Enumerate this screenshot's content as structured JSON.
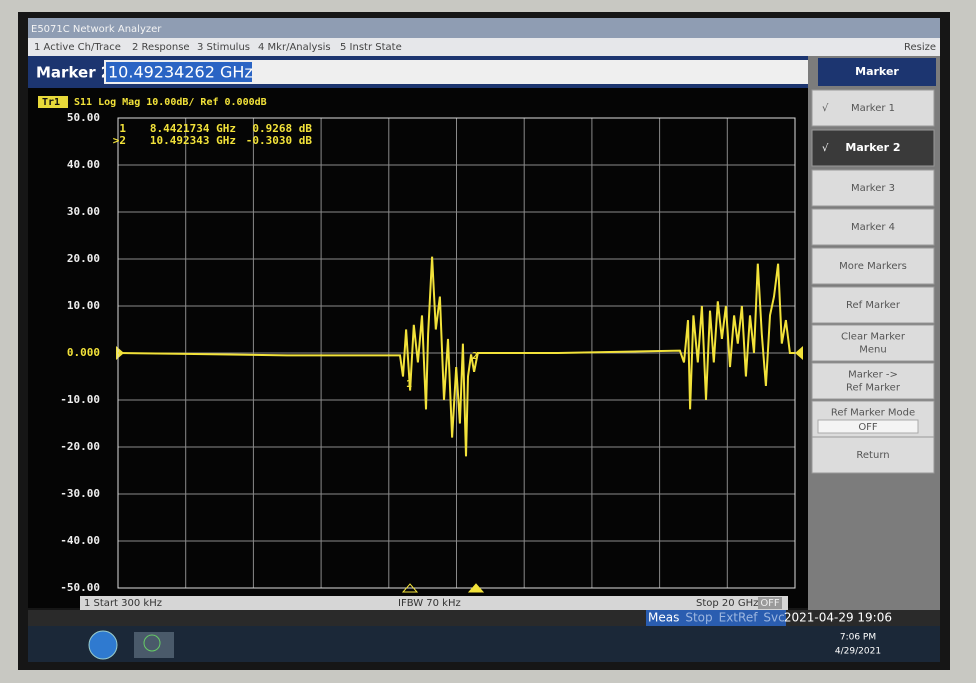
{
  "window": {
    "title": "E5071C Network Analyzer",
    "resize": "Resize"
  },
  "menu": [
    "1 Active Ch/Trace",
    "2 Response",
    "3 Stimulus",
    "4 Mkr/Analysis",
    "5 Instr State"
  ],
  "entry": {
    "label": "Marker 2",
    "value": "10.49234262 GHz"
  },
  "softkeys": {
    "title": "Marker",
    "keys": [
      {
        "lines": [
          "Marker 1"
        ],
        "mark": "√"
      },
      {
        "lines": [
          "Marker 2"
        ],
        "mark": "√",
        "selected": true
      },
      {
        "lines": [
          "Marker 3"
        ]
      },
      {
        "lines": [
          "Marker 4"
        ]
      },
      {
        "lines": [
          "More Markers"
        ]
      },
      {
        "lines": [
          "Ref Marker"
        ]
      },
      {
        "lines": [
          "Clear Marker",
          "Menu"
        ]
      },
      {
        "lines": [
          "Marker ->",
          "Ref Marker"
        ]
      },
      {
        "lines": [
          "Ref Marker Mode"
        ],
        "value": "OFF"
      },
      {
        "lines": [
          "Return"
        ]
      }
    ]
  },
  "trace": {
    "id": "Tr1",
    "header": "S11 Log Mag 10.00dB/ Ref 0.000dB",
    "color": "#f2e23a",
    "ylim": [
      -50,
      50
    ],
    "yticks": [
      {
        "value": 50,
        "label": "50.00"
      },
      {
        "value": 40,
        "label": "40.00"
      },
      {
        "value": 30,
        "label": "30.00"
      },
      {
        "value": 20,
        "label": "20.00"
      },
      {
        "value": 10,
        "label": "10.00"
      },
      {
        "value": 0,
        "label": "0.000"
      },
      {
        "value": -10,
        "label": "-10.00"
      },
      {
        "value": -20,
        "label": "-20.00"
      },
      {
        "value": -30,
        "label": "-30.00"
      },
      {
        "value": -40,
        "label": "-40.00"
      },
      {
        "value": -50,
        "label": "-50.00"
      }
    ],
    "xlim": [
      0.0003,
      20
    ],
    "x": [
      0.0003,
      2,
      5,
      8.33,
      8.42,
      8.51,
      8.63,
      8.74,
      8.86,
      8.98,
      9.1,
      9.16,
      9.28,
      9.39,
      9.51,
      9.63,
      9.75,
      9.87,
      9.99,
      10.1,
      10.19,
      10.28,
      10.34,
      10.43,
      10.52,
      10.63,
      13,
      16.6,
      16.72,
      16.84,
      16.9,
      17,
      17.13,
      17.25,
      17.37,
      17.49,
      17.6,
      17.72,
      17.84,
      17.96,
      18.08,
      18.2,
      18.31,
      18.43,
      18.55,
      18.67,
      18.79,
      18.9,
      19.02,
      19.14,
      19.26,
      19.38,
      19.5,
      19.61,
      19.73,
      19.85,
      20
    ],
    "db": [
      0,
      -0.2,
      -0.5,
      -0.5,
      -5,
      5,
      -8,
      6,
      -2,
      8,
      -12,
      4,
      20.5,
      5,
      12,
      -10,
      3,
      -18,
      -3,
      -15,
      2,
      -22,
      -5,
      -0.3,
      -4,
      0,
      0,
      0.5,
      -2,
      7,
      -12,
      8,
      -2,
      10,
      -10,
      9,
      -2,
      11,
      3,
      10,
      -3,
      8,
      2,
      10,
      -5,
      8,
      0,
      19,
      4,
      -7,
      8,
      12,
      19,
      2,
      7,
      0,
      0
    ]
  },
  "markers": [
    {
      "id": "1",
      "freq": "8.4421734 GHz",
      "value": "0.9268 dB",
      "tag": "1"
    },
    {
      "id": ">2",
      "freq": "10.492343 GHz",
      "value": "-0.3030 dB",
      "tag": "2"
    }
  ],
  "footer": {
    "start": "1 Start 300 kHz",
    "ifbw": "IFBW 70 kHz",
    "stop": "Stop 20 GHz",
    "off": "OFF"
  },
  "status": {
    "items": [
      "Meas",
      "Stop",
      "ExtRef",
      "Svc"
    ],
    "datetime": "2021-04-29 19:06"
  },
  "taskbar": {
    "time": "7:06 PM",
    "date": "4/29/2021"
  }
}
